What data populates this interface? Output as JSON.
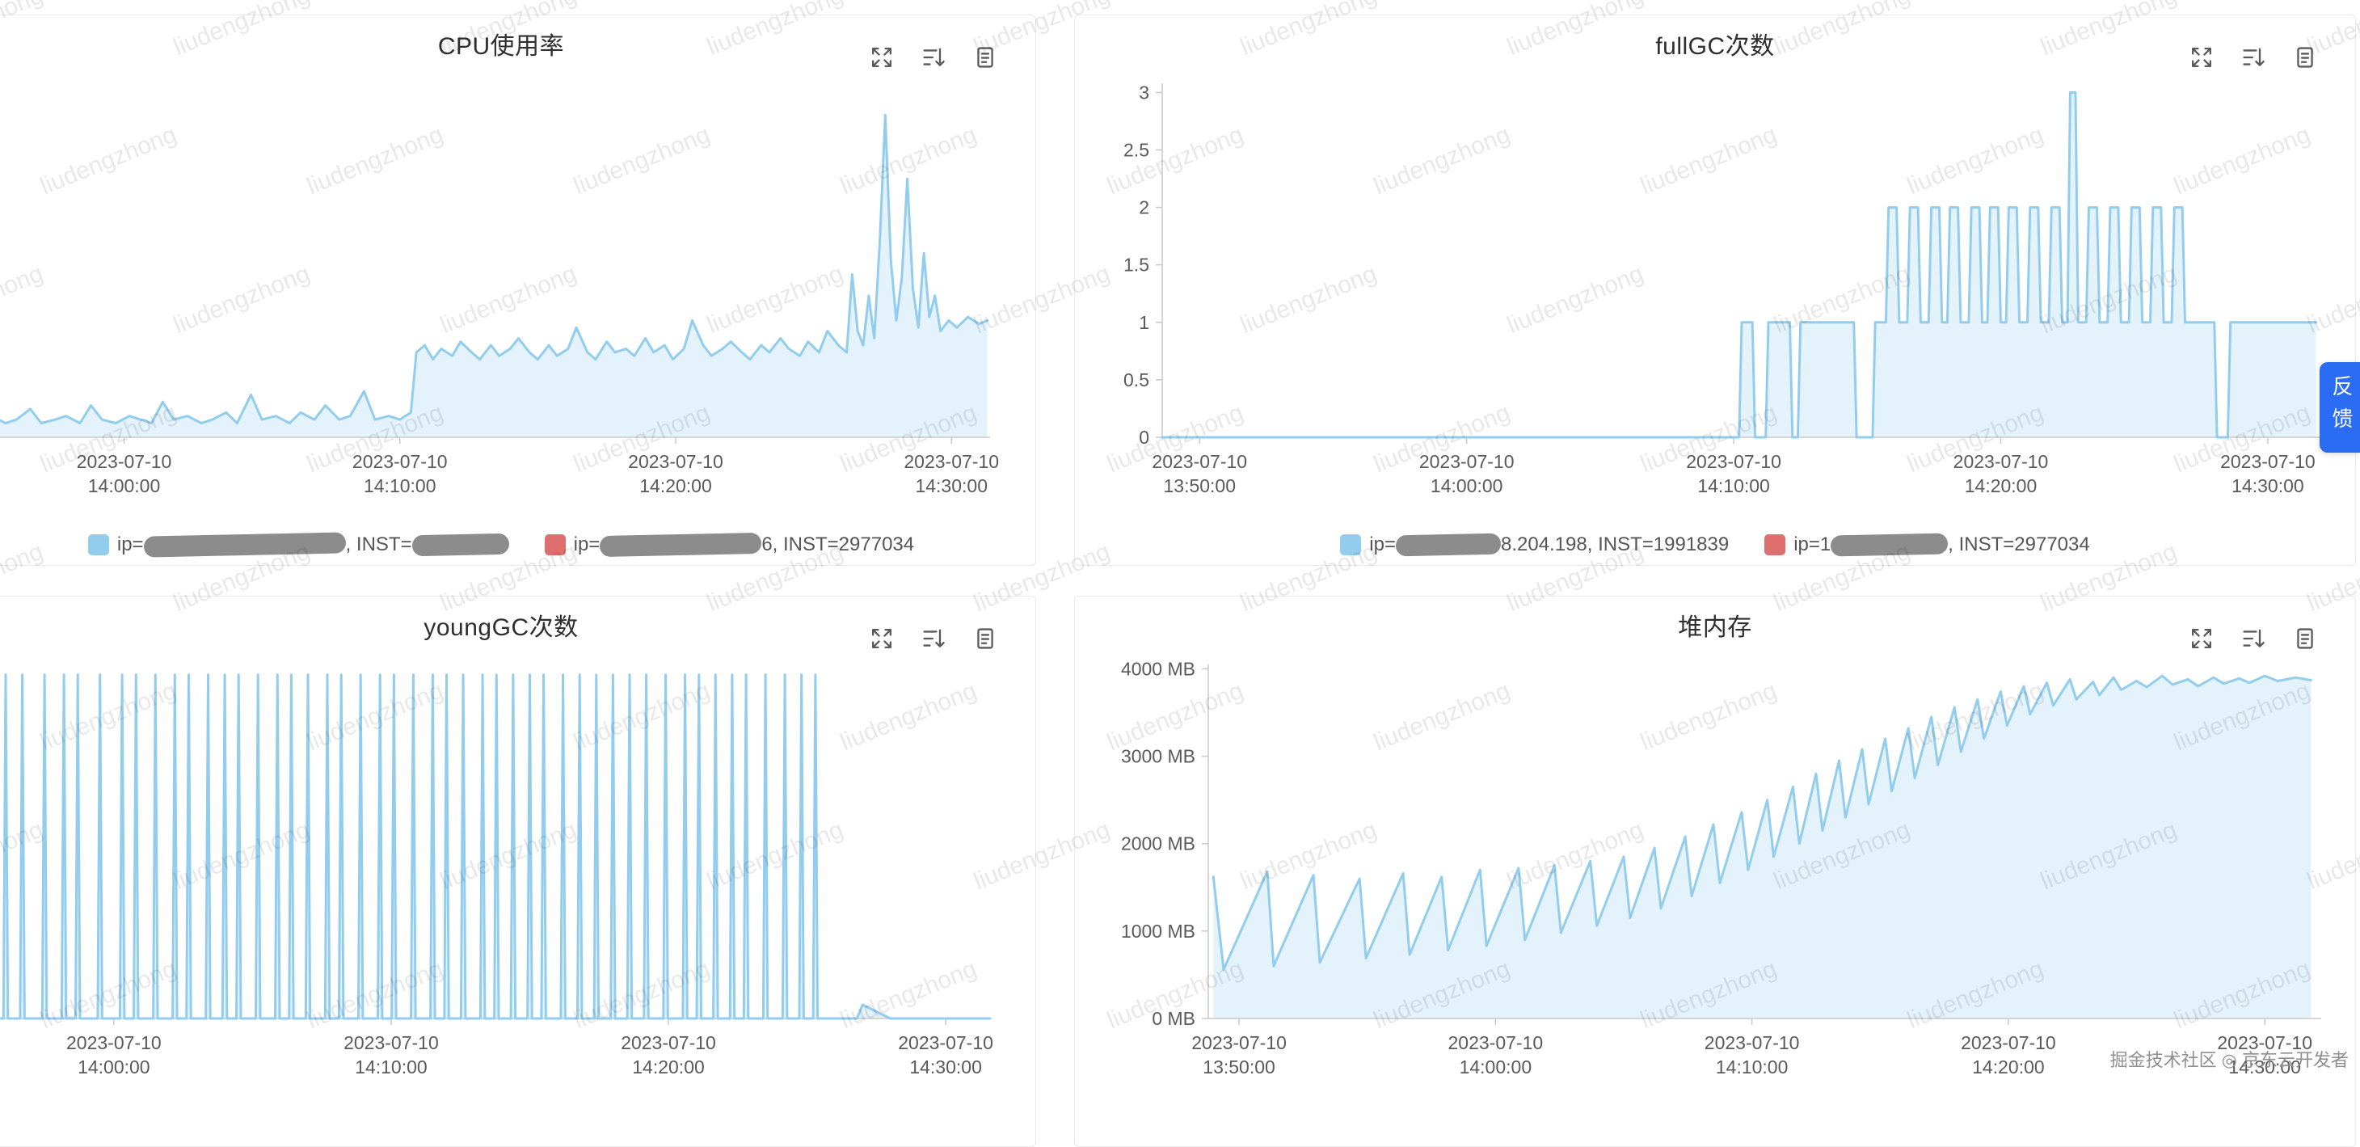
{
  "watermark": {
    "text": "liudengzhong"
  },
  "credit": "掘金技术社区 ◎ 京东云开发者",
  "side_tab": {
    "label": "反馈"
  },
  "colors": {
    "series_line": "#93cdee",
    "series_fill": "rgba(147,205,238,0.25)",
    "axis": "#c9c9c9",
    "tick_text": "#5a5a5a",
    "legend_blue": "#93cdee",
    "legend_red": "#df6e6e",
    "mask_blob": "#8c8c8c",
    "side_tab_bg": "#2b6df2"
  },
  "chart_data": [
    {
      "title": "CPU使用率",
      "type": "line",
      "legend_position": "bottom",
      "x_domain": [
        4.3,
        41.4
      ],
      "y_domain": [
        0,
        100
      ],
      "x_ticks": [
        {
          "x": 10,
          "date": "2023-07-10",
          "time": "14:00:00"
        },
        {
          "x": 20,
          "date": "2023-07-10",
          "time": "14:10:00"
        },
        {
          "x": 30,
          "date": "2023-07-10",
          "time": "14:20:00"
        },
        {
          "x": 40,
          "date": "2023-07-10",
          "time": "14:30:00"
        }
      ],
      "y_ticks": null,
      "points": [
        [
          4.3,
          5
        ],
        [
          4.8,
          4
        ],
        [
          5.2,
          6
        ],
        [
          5.7,
          4
        ],
        [
          6.1,
          5
        ],
        [
          6.6,
          8
        ],
        [
          7,
          4
        ],
        [
          7.5,
          5
        ],
        [
          7.9,
          6
        ],
        [
          8.4,
          4
        ],
        [
          8.8,
          9
        ],
        [
          9.2,
          5
        ],
        [
          9.7,
          4
        ],
        [
          10.2,
          6
        ],
        [
          10.6,
          5
        ],
        [
          11,
          4
        ],
        [
          11.4,
          10
        ],
        [
          11.8,
          5
        ],
        [
          12.3,
          6
        ],
        [
          12.8,
          4
        ],
        [
          13.2,
          5
        ],
        [
          13.7,
          7
        ],
        [
          14.1,
          4
        ],
        [
          14.6,
          12
        ],
        [
          15,
          5
        ],
        [
          15.5,
          6
        ],
        [
          16,
          4
        ],
        [
          16.4,
          7
        ],
        [
          16.9,
          5
        ],
        [
          17.3,
          9
        ],
        [
          17.8,
          5
        ],
        [
          18.2,
          6
        ],
        [
          18.7,
          13
        ],
        [
          19.1,
          5
        ],
        [
          19.6,
          6
        ],
        [
          20,
          5
        ],
        [
          20.4,
          7
        ],
        [
          20.6,
          24
        ],
        [
          20.9,
          26
        ],
        [
          21.2,
          22
        ],
        [
          21.5,
          25
        ],
        [
          21.9,
          23
        ],
        [
          22.2,
          27
        ],
        [
          22.6,
          24
        ],
        [
          22.9,
          22
        ],
        [
          23.3,
          26
        ],
        [
          23.6,
          23
        ],
        [
          24,
          25
        ],
        [
          24.3,
          28
        ],
        [
          24.7,
          24
        ],
        [
          25,
          22
        ],
        [
          25.4,
          26
        ],
        [
          25.7,
          23
        ],
        [
          26.1,
          25
        ],
        [
          26.4,
          31
        ],
        [
          26.8,
          24
        ],
        [
          27.1,
          22
        ],
        [
          27.5,
          27
        ],
        [
          27.8,
          24
        ],
        [
          28.2,
          25
        ],
        [
          28.5,
          23
        ],
        [
          28.9,
          28
        ],
        [
          29.2,
          24
        ],
        [
          29.6,
          26
        ],
        [
          29.9,
          22
        ],
        [
          30.3,
          25
        ],
        [
          30.6,
          33
        ],
        [
          31,
          26
        ],
        [
          31.3,
          23
        ],
        [
          31.7,
          25
        ],
        [
          32,
          27
        ],
        [
          32.4,
          24
        ],
        [
          32.7,
          22
        ],
        [
          33.1,
          26
        ],
        [
          33.4,
          24
        ],
        [
          33.8,
          28
        ],
        [
          34.1,
          25
        ],
        [
          34.5,
          23
        ],
        [
          34.8,
          27
        ],
        [
          35.2,
          24
        ],
        [
          35.5,
          30
        ],
        [
          35.9,
          26
        ],
        [
          36.2,
          24
        ],
        [
          36.4,
          46
        ],
        [
          36.6,
          30
        ],
        [
          36.8,
          26
        ],
        [
          37,
          40
        ],
        [
          37.2,
          28
        ],
        [
          37.4,
          55
        ],
        [
          37.6,
          91
        ],
        [
          37.8,
          50
        ],
        [
          38,
          33
        ],
        [
          38.2,
          45
        ],
        [
          38.4,
          73
        ],
        [
          38.6,
          42
        ],
        [
          38.8,
          31
        ],
        [
          39,
          52
        ],
        [
          39.2,
          34
        ],
        [
          39.4,
          40
        ],
        [
          39.6,
          30
        ],
        [
          39.9,
          33
        ],
        [
          40.2,
          31
        ],
        [
          40.6,
          34
        ],
        [
          41,
          32
        ],
        [
          41.3,
          33
        ]
      ],
      "legend": [
        {
          "color": "#93cdee",
          "segments": [
            {
              "text": "ip="
            },
            {
              "blob": 250
            },
            {
              "text": ", INST="
            },
            {
              "blob": 120
            }
          ]
        },
        {
          "color": "#df6e6e",
          "segments": [
            {
              "text": "ip="
            },
            {
              "blob": 200
            },
            {
              "text": "6, INST=2977034"
            }
          ]
        }
      ]
    },
    {
      "title": "fullGC次数",
      "type": "line",
      "legend_position": "bottom",
      "x_domain": [
        -1.4,
        42
      ],
      "y_domain": [
        0,
        3.08
      ],
      "x_ticks": [
        {
          "x": 0,
          "date": "2023-07-10",
          "time": "13:50:00"
        },
        {
          "x": 10,
          "date": "2023-07-10",
          "time": "14:00:00"
        },
        {
          "x": 20,
          "date": "2023-07-10",
          "time": "14:10:00"
        },
        {
          "x": 30,
          "date": "2023-07-10",
          "time": "14:20:00"
        },
        {
          "x": 40,
          "date": "2023-07-10",
          "time": "14:30:00"
        }
      ],
      "y_ticks": [
        {
          "y": 0,
          "label": "0"
        },
        {
          "y": 0.5,
          "label": "0.5"
        },
        {
          "y": 1,
          "label": "1"
        },
        {
          "y": 1.5,
          "label": "1.5"
        },
        {
          "y": 2,
          "label": "2"
        },
        {
          "y": 2.5,
          "label": "2.5"
        },
        {
          "y": 3,
          "label": "3"
        }
      ],
      "points": [
        [
          -1.4,
          0
        ],
        [
          20.2,
          0
        ],
        [
          20.3,
          1
        ],
        [
          20.7,
          1
        ],
        [
          20.8,
          0
        ],
        [
          21.2,
          0
        ],
        [
          21.3,
          1
        ],
        [
          22.1,
          1
        ],
        [
          22.2,
          0
        ],
        [
          22.4,
          0
        ],
        [
          22.5,
          1
        ],
        [
          24.5,
          1
        ],
        [
          24.6,
          0
        ],
        [
          25.2,
          0
        ],
        [
          25.3,
          1
        ],
        [
          25.7,
          1
        ],
        [
          25.8,
          2
        ],
        [
          26.1,
          2
        ],
        [
          26.2,
          1
        ],
        [
          26.5,
          1
        ],
        [
          26.6,
          2
        ],
        [
          26.9,
          2
        ],
        [
          27,
          1
        ],
        [
          27.3,
          1
        ],
        [
          27.4,
          2
        ],
        [
          27.7,
          2
        ],
        [
          27.8,
          1
        ],
        [
          28,
          1
        ],
        [
          28.1,
          2
        ],
        [
          28.4,
          2
        ],
        [
          28.5,
          1
        ],
        [
          28.8,
          1
        ],
        [
          28.9,
          2
        ],
        [
          29.2,
          2
        ],
        [
          29.3,
          1
        ],
        [
          29.5,
          1
        ],
        [
          29.6,
          2
        ],
        [
          29.9,
          2
        ],
        [
          30,
          1
        ],
        [
          30.2,
          1
        ],
        [
          30.3,
          2
        ],
        [
          30.6,
          2
        ],
        [
          30.7,
          1
        ],
        [
          31,
          1
        ],
        [
          31.1,
          2
        ],
        [
          31.4,
          2
        ],
        [
          31.5,
          1
        ],
        [
          31.8,
          1
        ],
        [
          31.9,
          2
        ],
        [
          32.2,
          2
        ],
        [
          32.3,
          1
        ],
        [
          32.5,
          1
        ],
        [
          32.6,
          3
        ],
        [
          32.8,
          3
        ],
        [
          32.9,
          1
        ],
        [
          33.2,
          1
        ],
        [
          33.3,
          2
        ],
        [
          33.6,
          2
        ],
        [
          33.7,
          1
        ],
        [
          34,
          1
        ],
        [
          34.1,
          2
        ],
        [
          34.4,
          2
        ],
        [
          34.5,
          1
        ],
        [
          34.8,
          1
        ],
        [
          34.9,
          2
        ],
        [
          35.2,
          2
        ],
        [
          35.3,
          1
        ],
        [
          35.6,
          1
        ],
        [
          35.7,
          2
        ],
        [
          36,
          2
        ],
        [
          36.1,
          1
        ],
        [
          36.4,
          1
        ],
        [
          36.5,
          2
        ],
        [
          36.8,
          2
        ],
        [
          36.9,
          1
        ],
        [
          38,
          1
        ],
        [
          38.1,
          0
        ],
        [
          38.5,
          0
        ],
        [
          38.6,
          1
        ],
        [
          41.8,
          1
        ]
      ],
      "legend": [
        {
          "color": "#93cdee",
          "segments": [
            {
              "text": "ip="
            },
            {
              "blob": 130
            },
            {
              "text": "8.204.198, INST=1991839"
            }
          ]
        },
        {
          "color": "#df6e6e",
          "segments": [
            {
              "text": "ip=1"
            },
            {
              "blob": 145
            },
            {
              "text": ", INST=2977034"
            }
          ]
        }
      ]
    },
    {
      "title": "youngGC次数",
      "type": "line",
      "x_domain": [
        4.7,
        41.6
      ],
      "y_domain": [
        0,
        1.03
      ],
      "x_ticks": [
        {
          "x": 10,
          "date": "2023-07-10",
          "time": "14:00:00"
        },
        {
          "x": 20,
          "date": "2023-07-10",
          "time": "14:10:00"
        },
        {
          "x": 30,
          "date": "2023-07-10",
          "time": "14:20:00"
        },
        {
          "x": 40,
          "date": "2023-07-10",
          "time": "14:30:00"
        }
      ],
      "y_ticks": null,
      "spike_value": 1,
      "spike_times": [
        5.5,
        6.1,
        6.7,
        7.5,
        8.2,
        8.7,
        9.5,
        10.3,
        10.8,
        11.5,
        12.2,
        12.7,
        13.4,
        14.0,
        14.5,
        15.2,
        15.9,
        16.4,
        17.0,
        17.7,
        18.2,
        18.9,
        19.6,
        20.1,
        20.8,
        21.5,
        22.0,
        22.6,
        23.3,
        23.8,
        24.4,
        25.0,
        25.5,
        26.2,
        26.8,
        27.4,
        28.0,
        28.6,
        29.2,
        29.9,
        30.6,
        31.1,
        31.7,
        32.3,
        32.8,
        33.5,
        34.2,
        34.8,
        35.3
      ],
      "tail": [
        [
          35.6,
          0
        ],
        [
          36.8,
          0
        ],
        [
          37.0,
          0.04
        ],
        [
          37.5,
          0.02
        ],
        [
          38,
          0
        ],
        [
          41.6,
          0
        ]
      ],
      "legend": null
    },
    {
      "title": "堆内存",
      "type": "line",
      "x_domain": [
        -1.2,
        42.2
      ],
      "y_domain": [
        0,
        4050
      ],
      "x_ticks": [
        {
          "x": 0,
          "date": "2023-07-10",
          "time": "13:50:00"
        },
        {
          "x": 10,
          "date": "2023-07-10",
          "time": "14:00:00"
        },
        {
          "x": 20,
          "date": "2023-07-10",
          "time": "14:10:00"
        },
        {
          "x": 30,
          "date": "2023-07-10",
          "time": "14:20:00"
        },
        {
          "x": 40,
          "date": "2023-07-10",
          "time": "14:30:00"
        }
      ],
      "y_ticks": [
        {
          "y": 0,
          "label": "0 MB"
        },
        {
          "y": 1000,
          "label": "1000 MB"
        },
        {
          "y": 2000,
          "label": "2000 MB"
        },
        {
          "y": 3000,
          "label": "3000 MB"
        },
        {
          "y": 4000,
          "label": "4000 MB"
        }
      ],
      "points": [
        [
          -1,
          1620
        ],
        [
          -0.6,
          560
        ],
        [
          1.1,
          1680
        ],
        [
          1.35,
          600
        ],
        [
          2.9,
          1640
        ],
        [
          3.15,
          640
        ],
        [
          4.7,
          1600
        ],
        [
          4.95,
          690
        ],
        [
          6.4,
          1660
        ],
        [
          6.65,
          730
        ],
        [
          7.9,
          1620
        ],
        [
          8.15,
          780
        ],
        [
          9.4,
          1700
        ],
        [
          9.65,
          830
        ],
        [
          10.9,
          1720
        ],
        [
          11.15,
          900
        ],
        [
          12.3,
          1750
        ],
        [
          12.55,
          980
        ],
        [
          13.7,
          1800
        ],
        [
          13.95,
          1060
        ],
        [
          15,
          1850
        ],
        [
          15.25,
          1150
        ],
        [
          16.2,
          1950
        ],
        [
          16.45,
          1260
        ],
        [
          17.4,
          2080
        ],
        [
          17.65,
          1400
        ],
        [
          18.5,
          2220
        ],
        [
          18.75,
          1550
        ],
        [
          19.6,
          2360
        ],
        [
          19.85,
          1700
        ],
        [
          20.6,
          2500
        ],
        [
          20.85,
          1850
        ],
        [
          21.6,
          2650
        ],
        [
          21.85,
          2000
        ],
        [
          22.5,
          2800
        ],
        [
          22.75,
          2150
        ],
        [
          23.4,
          2950
        ],
        [
          23.65,
          2300
        ],
        [
          24.3,
          3080
        ],
        [
          24.55,
          2450
        ],
        [
          25.2,
          3200
        ],
        [
          25.45,
          2600
        ],
        [
          26.1,
          3320
        ],
        [
          26.35,
          2750
        ],
        [
          27,
          3450
        ],
        [
          27.25,
          2900
        ],
        [
          27.9,
          3560
        ],
        [
          28.15,
          3050
        ],
        [
          28.8,
          3650
        ],
        [
          29.05,
          3200
        ],
        [
          29.7,
          3740
        ],
        [
          29.95,
          3350
        ],
        [
          30.6,
          3800
        ],
        [
          30.85,
          3480
        ],
        [
          31.5,
          3840
        ],
        [
          31.75,
          3580
        ],
        [
          32.4,
          3880
        ],
        [
          32.65,
          3650
        ],
        [
          33.3,
          3850
        ],
        [
          33.55,
          3700
        ],
        [
          34.1,
          3900
        ],
        [
          34.4,
          3760
        ],
        [
          35,
          3860
        ],
        [
          35.4,
          3790
        ],
        [
          36,
          3920
        ],
        [
          36.4,
          3820
        ],
        [
          37,
          3880
        ],
        [
          37.4,
          3800
        ],
        [
          38,
          3900
        ],
        [
          38.4,
          3830
        ],
        [
          39,
          3890
        ],
        [
          39.4,
          3840
        ],
        [
          40,
          3920
        ],
        [
          40.5,
          3860
        ],
        [
          41.2,
          3900
        ],
        [
          41.8,
          3870
        ]
      ],
      "legend": null
    }
  ]
}
